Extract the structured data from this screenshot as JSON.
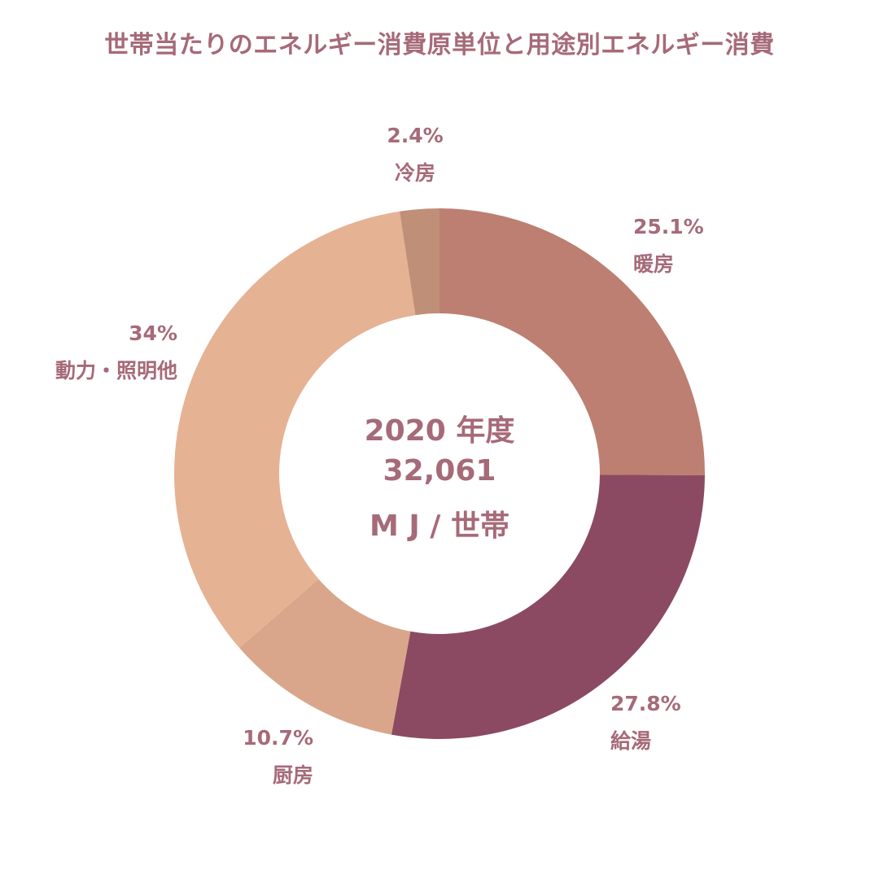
{
  "title": "世帯当たりのエネルギー消費原単位と用途別エネルギー消費",
  "center": {
    "year": "2020 年度",
    "total": "32,061",
    "unit": "M J / 世帯"
  },
  "chart_data": {
    "type": "pie",
    "donut": true,
    "title": "世帯当たりのエネルギー消費原単位と用途別エネルギー消費",
    "start": "top (12 o'clock), clockwise",
    "segments": [
      {
        "label": "暖房",
        "value": 25.1,
        "value_label": "25.1%",
        "color": "#bd7f72"
      },
      {
        "label": "給湯",
        "value": 27.8,
        "value_label": "27.8%",
        "color": "#8c4a62"
      },
      {
        "label": "厨房",
        "value": 10.7,
        "value_label": "10.7%",
        "color": "#d9a68b"
      },
      {
        "label": "動力・照明他",
        "value": 34,
        "value_label": "34%",
        "color": "#e5b294"
      },
      {
        "label": "冷房",
        "value": 2.4,
        "value_label": "2.4%",
        "color": "#c08f77"
      }
    ]
  }
}
